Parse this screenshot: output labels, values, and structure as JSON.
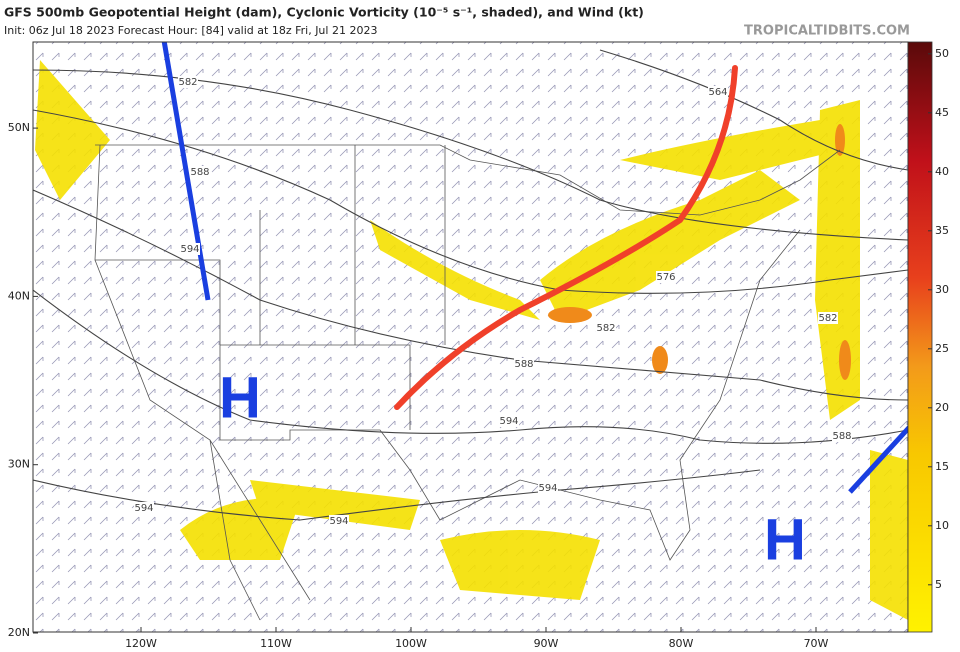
{
  "header": {
    "title": "GFS 500mb Geopotential Height (dam), Cyclonic Vorticity (10⁻⁵ s⁻¹, shaded), and Wind (kt)",
    "subtitle": "Init: 06z Jul 18 2023   Forecast Hour: [84]   valid at 18z Fri, Jul 21 2023",
    "watermark": "TROPICALTIDBITS.COM"
  },
  "map": {
    "lat_ticks": [
      {
        "value": 50,
        "label": "50N"
      },
      {
        "value": 40,
        "label": "40N"
      },
      {
        "value": 30,
        "label": "30N"
      },
      {
        "value": 20,
        "label": "20N"
      }
    ],
    "lon_ticks": [
      {
        "value": -120,
        "label": "120W"
      },
      {
        "value": -110,
        "label": "110W"
      },
      {
        "value": -100,
        "label": "100W"
      },
      {
        "value": -90,
        "label": "90W"
      },
      {
        "value": -80,
        "label": "80W"
      },
      {
        "value": -70,
        "label": "70W"
      }
    ],
    "contour_labels": [
      582,
      588,
      594,
      564,
      576,
      582,
      588,
      594,
      594,
      594,
      594,
      582,
      588
    ],
    "highs": [
      "H",
      "H"
    ]
  },
  "colorbar": {
    "range": [
      1,
      51
    ],
    "ticks": [
      5,
      10,
      15,
      20,
      25,
      30,
      35,
      40,
      45,
      50
    ]
  }
}
